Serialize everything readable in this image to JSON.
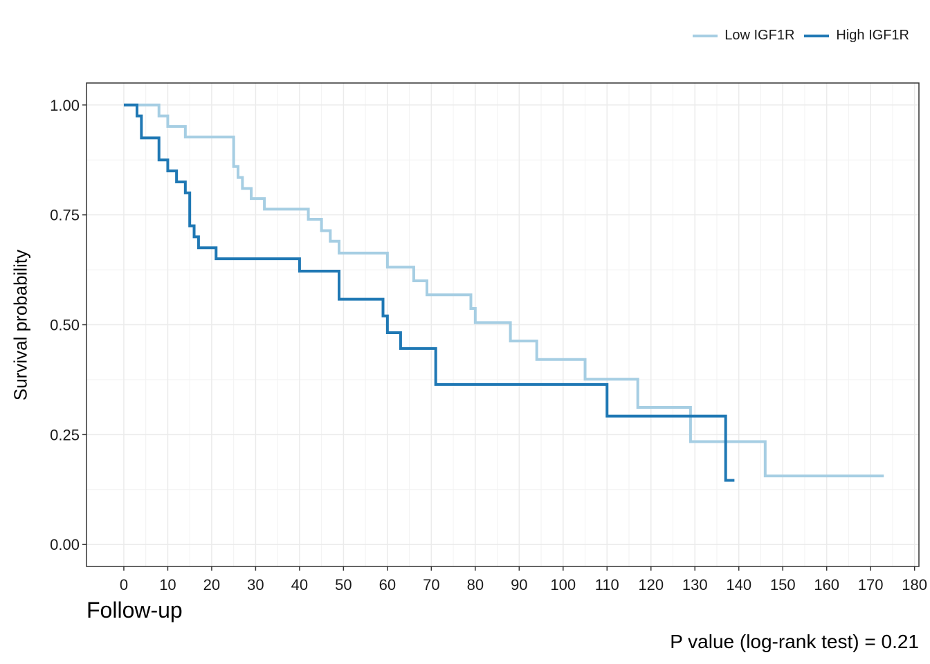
{
  "chart_data": {
    "type": "line",
    "step": true,
    "xlabel": "Follow-up",
    "ylabel": "Survival probability",
    "annotation": "P value (log-rank test) = 0.21",
    "xlim": [
      -8.5,
      181
    ],
    "ylim": [
      -0.05,
      1.05
    ],
    "xticks": [
      0,
      10,
      20,
      30,
      40,
      50,
      60,
      70,
      80,
      90,
      100,
      110,
      120,
      130,
      140,
      150,
      160,
      170,
      180
    ],
    "yticks": [
      0.0,
      0.25,
      0.5,
      0.75,
      1.0
    ],
    "ytick_labels": [
      "0.00",
      "0.25",
      "0.50",
      "0.75",
      "1.00"
    ],
    "grid": true,
    "legend_position": "top-right",
    "series": [
      {
        "name": "Low IGF1R",
        "color": "#a6cee3",
        "points": [
          [
            0,
            1.0
          ],
          [
            8,
            0.975
          ],
          [
            10,
            0.951
          ],
          [
            14,
            0.927
          ],
          [
            25,
            0.86
          ],
          [
            26,
            0.835
          ],
          [
            27,
            0.81
          ],
          [
            29,
            0.787
          ],
          [
            32,
            0.763
          ],
          [
            42,
            0.74
          ],
          [
            45,
            0.714
          ],
          [
            47,
            0.69
          ],
          [
            49,
            0.663
          ],
          [
            60,
            0.631
          ],
          [
            66,
            0.6
          ],
          [
            69,
            0.568
          ],
          [
            79,
            0.537
          ],
          [
            80,
            0.505
          ],
          [
            88,
            0.463
          ],
          [
            94,
            0.421
          ],
          [
            105,
            0.376
          ],
          [
            117,
            0.312
          ],
          [
            129,
            0.234
          ],
          [
            146,
            0.156
          ],
          [
            173,
            0.156
          ]
        ]
      },
      {
        "name": "High IGF1R",
        "color": "#1f78b4",
        "points": [
          [
            0,
            1.0
          ],
          [
            3,
            0.975
          ],
          [
            4,
            0.925
          ],
          [
            8,
            0.875
          ],
          [
            10,
            0.85
          ],
          [
            12,
            0.825
          ],
          [
            14,
            0.8
          ],
          [
            15,
            0.725
          ],
          [
            16,
            0.7
          ],
          [
            17,
            0.675
          ],
          [
            21,
            0.65
          ],
          [
            40,
            0.622
          ],
          [
            49,
            0.558
          ],
          [
            59,
            0.52
          ],
          [
            60,
            0.482
          ],
          [
            63,
            0.446
          ],
          [
            71,
            0.364
          ],
          [
            110,
            0.292
          ],
          [
            137,
            0.146
          ],
          [
            139,
            0.146
          ]
        ]
      }
    ]
  }
}
